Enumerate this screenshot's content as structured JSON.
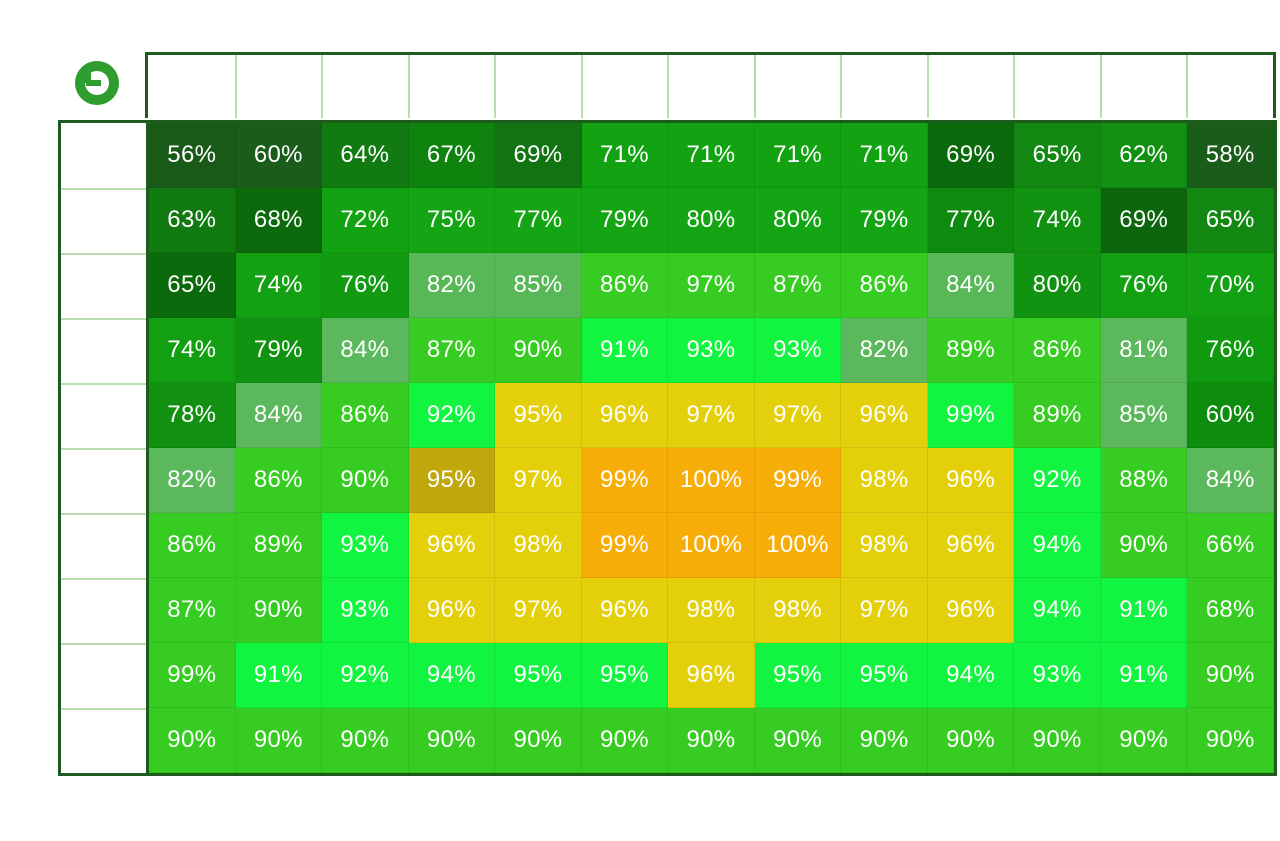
{
  "logo": {
    "icon": "brand-logo-icon",
    "color": "#2e9c2e"
  },
  "chart_data": {
    "type": "heatmap",
    "rows": 10,
    "cols": 13,
    "unit": "%",
    "values": [
      [
        56,
        60,
        64,
        67,
        69,
        71,
        71,
        71,
        71,
        69,
        65,
        62,
        58
      ],
      [
        63,
        68,
        72,
        75,
        77,
        79,
        80,
        80,
        79,
        77,
        74,
        69,
        65
      ],
      [
        65,
        74,
        76,
        82,
        85,
        86,
        97,
        87,
        86,
        84,
        80,
        76,
        70
      ],
      [
        74,
        79,
        84,
        87,
        90,
        91,
        93,
        93,
        82,
        89,
        86,
        81,
        76
      ],
      [
        78,
        84,
        86,
        92,
        95,
        96,
        97,
        97,
        96,
        99,
        89,
        85,
        60
      ],
      [
        82,
        86,
        90,
        95,
        97,
        99,
        100,
        99,
        98,
        96,
        92,
        88,
        84
      ],
      [
        86,
        89,
        93,
        96,
        98,
        99,
        100,
        100,
        98,
        96,
        94,
        90,
        66
      ],
      [
        87,
        90,
        93,
        96,
        97,
        96,
        98,
        98,
        97,
        96,
        94,
        91,
        68
      ],
      [
        99,
        91,
        92,
        94,
        95,
        95,
        96,
        95,
        95,
        94,
        93,
        91,
        90
      ],
      [
        90,
        90,
        90,
        90,
        90,
        90,
        90,
        90,
        90,
        90,
        90,
        90,
        90
      ]
    ],
    "cell_colors": [
      [
        "#195a19",
        "#1a5c1a",
        "#117a11",
        "#0e840e",
        "#117311",
        "#12a212",
        "#12a212",
        "#12a212",
        "#12a212",
        "#0b6a0b",
        "#128812",
        "#129012",
        "#1a5c1a"
      ],
      [
        "#117a11",
        "#0c6a0c",
        "#12a212",
        "#13a513",
        "#13a513",
        "#13a513",
        "#13a513",
        "#13a513",
        "#13a513",
        "#0e8a0e",
        "#119211",
        "#0c660c",
        "#128812"
      ],
      [
        "#0b6a0b",
        "#13a013",
        "#139a13",
        "#58b858",
        "#58b858",
        "#36cc22",
        "#36cc22",
        "#36cc22",
        "#36cc22",
        "#58b858",
        "#119211",
        "#13a013",
        "#13a013"
      ],
      [
        "#12a012",
        "#119211",
        "#5cb85c",
        "#36cc22",
        "#36cc22",
        "#12f540",
        "#12f540",
        "#12f540",
        "#5cb85c",
        "#36cc22",
        "#36cc22",
        "#5cb85c",
        "#0f9a0f"
      ],
      [
        "#119011",
        "#5cb85c",
        "#36cc22",
        "#12f540",
        "#e3d00b",
        "#e3d00b",
        "#e3d00b",
        "#e3d00b",
        "#e3d00b",
        "#12f540",
        "#36cc22",
        "#5cb85c",
        "#0d8c0d"
      ],
      [
        "#5cb85c",
        "#36cc22",
        "#36cc22",
        "#c0a80c",
        "#e3d00b",
        "#f7ad07",
        "#f7ad07",
        "#f7ad07",
        "#e3d00b",
        "#e3d00b",
        "#12f540",
        "#36cc22",
        "#5cb85c"
      ],
      [
        "#36cc22",
        "#36cc22",
        "#12f540",
        "#e3d00b",
        "#e3d00b",
        "#f7ad07",
        "#f7ad07",
        "#f7ad07",
        "#e3d00b",
        "#e3d00b",
        "#12f540",
        "#36cc22",
        "#36cc22"
      ],
      [
        "#36cc22",
        "#36cc22",
        "#12f540",
        "#e3d00b",
        "#e3d00b",
        "#e3d00b",
        "#e3d00b",
        "#e3d00b",
        "#e3d00b",
        "#e3d00b",
        "#12f540",
        "#12f540",
        "#36cc22"
      ],
      [
        "#36cc22",
        "#12f540",
        "#12f540",
        "#12f540",
        "#12f540",
        "#12f540",
        "#e3d00b",
        "#12f540",
        "#12f540",
        "#12f540",
        "#12f540",
        "#12f540",
        "#36cc22"
      ],
      [
        "#36cc22",
        "#36cc22",
        "#36cc22",
        "#36cc22",
        "#36cc22",
        "#36cc22",
        "#36cc22",
        "#36cc22",
        "#36cc22",
        "#36cc22",
        "#36cc22",
        "#36cc22",
        "#36cc22"
      ]
    ],
    "border_color": "#1e5c1e",
    "grid_line_color": "#b9ddb0",
    "text_color": "#ffffff"
  }
}
